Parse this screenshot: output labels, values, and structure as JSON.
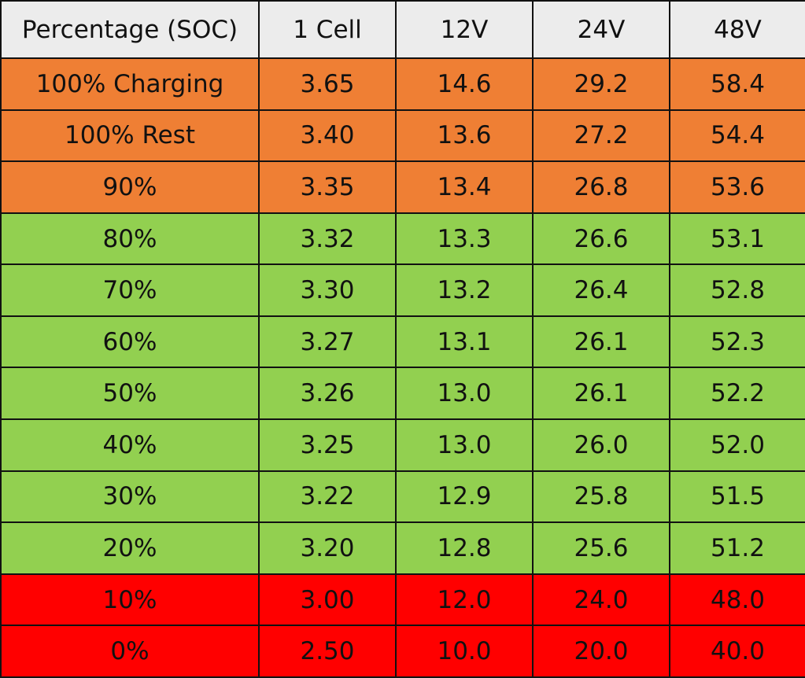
{
  "colors": {
    "header_bg": "#ececec",
    "orange": "#ef7f34",
    "green": "#92d050",
    "red": "#ff0000",
    "border": "#111111",
    "text": "#111111"
  },
  "table": {
    "headers": [
      "Percentage (SOC)",
      "1 Cell",
      "12V",
      "24V",
      "48V"
    ],
    "rows": [
      {
        "band": "orange",
        "cells": [
          "100% Charging",
          "3.65",
          "14.6",
          "29.2",
          "58.4"
        ]
      },
      {
        "band": "orange",
        "cells": [
          "100% Rest",
          "3.40",
          "13.6",
          "27.2",
          "54.4"
        ]
      },
      {
        "band": "orange",
        "cells": [
          "90%",
          "3.35",
          "13.4",
          "26.8",
          "53.6"
        ]
      },
      {
        "band": "green",
        "cells": [
          "80%",
          "3.32",
          "13.3",
          "26.6",
          "53.1"
        ]
      },
      {
        "band": "green",
        "cells": [
          "70%",
          "3.30",
          "13.2",
          "26.4",
          "52.8"
        ]
      },
      {
        "band": "green",
        "cells": [
          "60%",
          "3.27",
          "13.1",
          "26.1",
          "52.3"
        ]
      },
      {
        "band": "green",
        "cells": [
          "50%",
          "3.26",
          "13.0",
          "26.1",
          "52.2"
        ]
      },
      {
        "band": "green",
        "cells": [
          "40%",
          "3.25",
          "13.0",
          "26.0",
          "52.0"
        ]
      },
      {
        "band": "green",
        "cells": [
          "30%",
          "3.22",
          "12.9",
          "25.8",
          "51.5"
        ]
      },
      {
        "band": "green",
        "cells": [
          "20%",
          "3.20",
          "12.8",
          "25.6",
          "51.2"
        ]
      },
      {
        "band": "red",
        "cells": [
          "10%",
          "3.00",
          "12.0",
          "24.0",
          "48.0"
        ]
      },
      {
        "band": "red",
        "cells": [
          "0%",
          "2.50",
          "10.0",
          "20.0",
          "40.0"
        ]
      }
    ]
  }
}
